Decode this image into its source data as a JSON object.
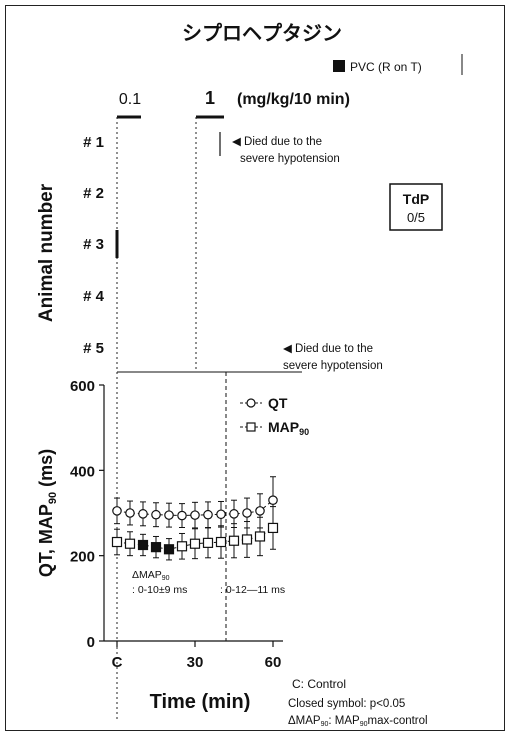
{
  "chart_data": {
    "type": "composite",
    "title": "シプロヘプタジン",
    "legend_pvc": "PVC (R on T)",
    "doses": [
      "0.1",
      "1"
    ],
    "dose_unit": "(mg/kg/10 min)",
    "top_panel": {
      "ylabel": "Animal number",
      "animals": [
        "# 1",
        "# 2",
        "# 3",
        "# 4",
        "# 5"
      ],
      "pvc_events": [
        {
          "animal": "# 3",
          "time_min": 0
        }
      ],
      "annotation_1": "◀ Died due to the",
      "annotation_1b": "severe hypotension",
      "annotation_5": "◀ Died due to the",
      "annotation_5b": "severe hypotension",
      "tdp_label": "TdP",
      "tdp_value": "0/5"
    },
    "bottom_panel": {
      "ylabel": "QT, MAP90 (ms)",
      "xlabel": "Time (min)",
      "ylim": [
        0,
        600
      ],
      "yticks": [
        "0",
        "200",
        "400",
        "600"
      ],
      "xticks": [
        "C",
        "30",
        "60"
      ],
      "x_min": [
        0,
        5,
        10,
        15,
        20,
        25,
        30,
        35,
        40,
        45,
        50,
        55,
        60
      ],
      "series": [
        {
          "name": "QT",
          "values": [
            305,
            300,
            298,
            296,
            295,
            294,
            295,
            296,
            297,
            298,
            300,
            305,
            330
          ],
          "err": [
            30,
            28,
            28,
            28,
            28,
            28,
            30,
            30,
            30,
            32,
            35,
            40,
            55
          ]
        },
        {
          "name": "MAP90",
          "values": [
            232,
            228,
            225,
            220,
            215,
            222,
            228,
            230,
            232,
            235,
            238,
            245,
            265
          ],
          "err": [
            30,
            28,
            25,
            25,
            25,
            30,
            35,
            35,
            38,
            40,
            42,
            45,
            50
          ],
          "closed": [
            false,
            false,
            true,
            true,
            true,
            false,
            false,
            false,
            false,
            false,
            false,
            false,
            false
          ]
        }
      ],
      "legend_qt": "QT",
      "legend_map": "MAP",
      "legend_map_sub": "90",
      "delta_label": "ΔMAP",
      "delta_sub": "90",
      "delta_1": ": 0-10±9 ms",
      "delta_2": ": 0-12—11 ms"
    },
    "footnote_1": "C: Control",
    "footnote_2": "Closed symbol: p<0.05",
    "footnote_3": "ΔMAP",
    "footnote_3_sub": "90",
    "footnote_3_rest": ": MAP",
    "footnote_3_sub2": "90",
    "footnote_3_tail": "max-control"
  }
}
